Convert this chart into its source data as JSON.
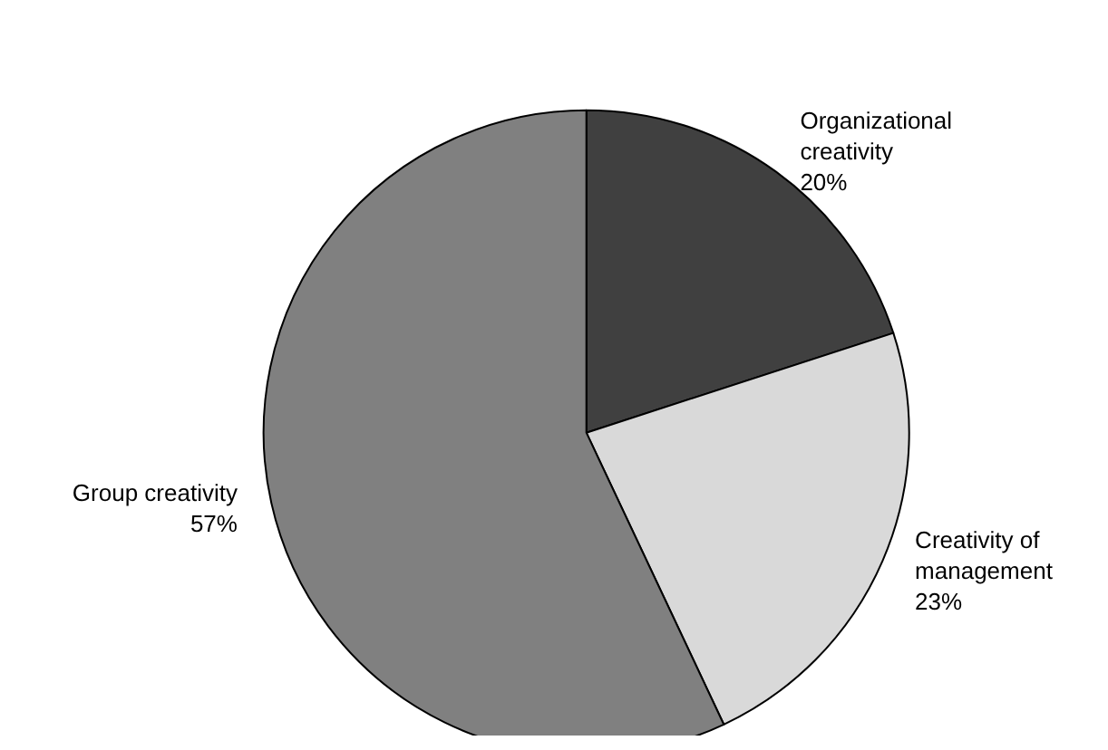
{
  "chart_data": {
    "type": "pie",
    "categories": [
      "Organizational creativity",
      "Creativity of management",
      "Group creativity"
    ],
    "values": [
      20,
      23,
      57
    ],
    "value_labels": [
      "20%",
      "23%",
      "57%"
    ],
    "colors": [
      "#404040",
      "#d9d9d9",
      "#808080"
    ],
    "legend": false
  }
}
